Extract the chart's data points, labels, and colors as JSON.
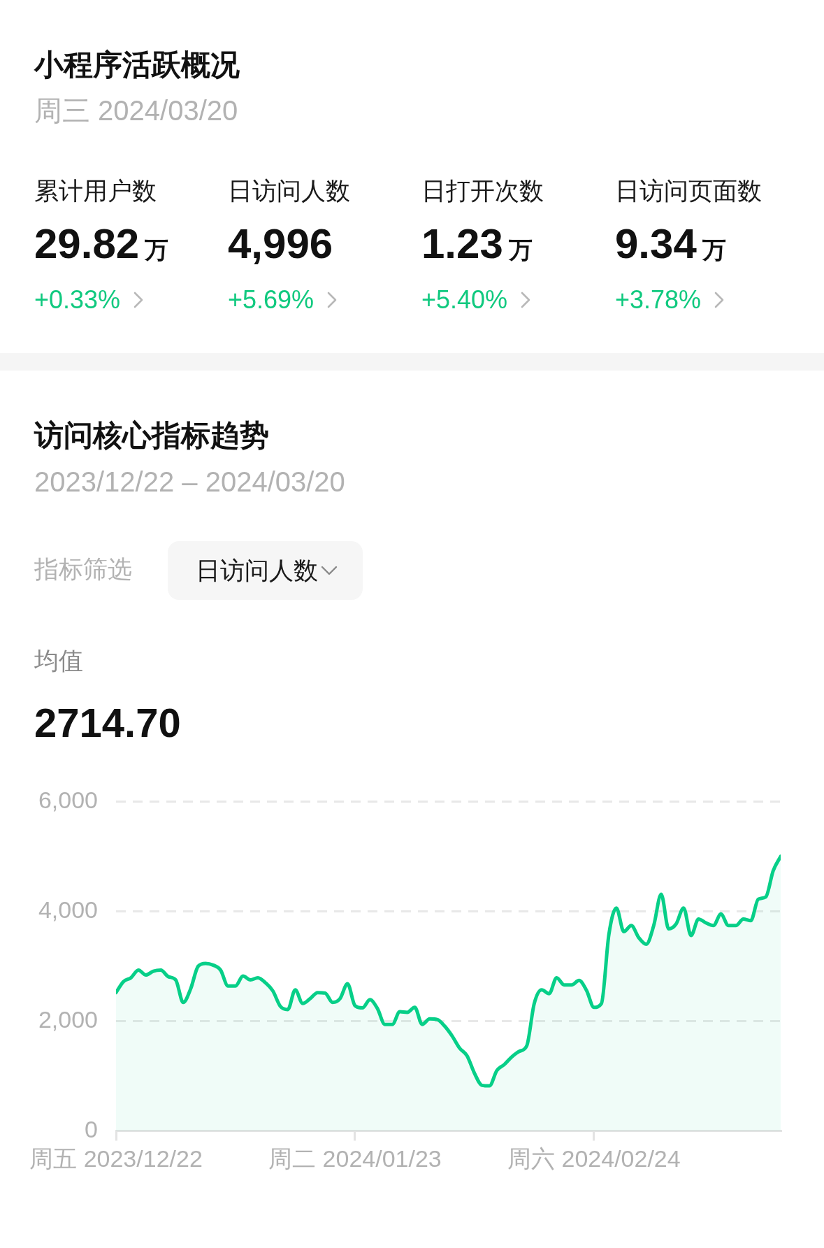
{
  "chart_data": [
    {
      "type": "other",
      "title": "小程序活跃概况",
      "subtitle": "周三 2024/03/20",
      "annotations": [
        "累计用户数",
        "29.82万",
        "+0.33%",
        "日访问人数",
        "4,996",
        "+5.69%",
        "日打开次数",
        "1.23万",
        "+5.40%",
        "日访问页面数",
        "9.34万",
        "+3.78%"
      ]
    },
    {
      "type": "area",
      "title": "访问核心指标趋势",
      "subtitle": "2023/12/22 – 2024/03/20",
      "annotations": [
        "指标筛选",
        "日访问人数",
        "均值",
        "2714.70"
      ],
      "x": [
        "2023-12-22",
        "2023-12-23",
        "2023-12-24",
        "2023-12-25",
        "2023-12-26",
        "2023-12-27",
        "2023-12-28",
        "2023-12-29",
        "2023-12-30",
        "2023-12-31",
        "2024-01-01",
        "2024-01-02",
        "2024-01-03",
        "2024-01-04",
        "2024-01-05",
        "2024-01-06",
        "2024-01-07",
        "2024-01-08",
        "2024-01-09",
        "2024-01-10",
        "2024-01-11",
        "2024-01-12",
        "2024-01-13",
        "2024-01-14",
        "2024-01-15",
        "2024-01-16",
        "2024-01-17",
        "2024-01-18",
        "2024-01-19",
        "2024-01-20",
        "2024-01-21",
        "2024-01-22",
        "2024-01-23",
        "2024-01-24",
        "2024-01-25",
        "2024-01-26",
        "2024-01-27",
        "2024-01-28",
        "2024-01-29",
        "2024-01-30",
        "2024-01-31",
        "2024-02-01",
        "2024-02-02",
        "2024-02-03",
        "2024-02-04",
        "2024-02-05",
        "2024-02-06",
        "2024-02-07",
        "2024-02-08",
        "2024-02-09",
        "2024-02-10",
        "2024-02-11",
        "2024-02-12",
        "2024-02-13",
        "2024-02-14",
        "2024-02-15",
        "2024-02-16",
        "2024-02-17",
        "2024-02-18",
        "2024-02-19",
        "2024-02-20",
        "2024-02-21",
        "2024-02-22",
        "2024-02-23",
        "2024-02-24",
        "2024-02-25",
        "2024-02-26",
        "2024-02-27",
        "2024-02-28",
        "2024-02-29",
        "2024-03-01",
        "2024-03-02",
        "2024-03-03",
        "2024-03-04",
        "2024-03-05",
        "2024-03-06",
        "2024-03-07",
        "2024-03-08",
        "2024-03-09",
        "2024-03-10",
        "2024-03-11",
        "2024-03-12",
        "2024-03-13",
        "2024-03-14",
        "2024-03-15",
        "2024-03-16",
        "2024-03-17",
        "2024-03-18",
        "2024-03-19",
        "2024-03-20"
      ],
      "values": [
        2520,
        2720,
        2790,
        2930,
        2840,
        2910,
        2930,
        2810,
        2750,
        2340,
        2590,
        3000,
        3050,
        3020,
        2930,
        2640,
        2640,
        2820,
        2750,
        2790,
        2700,
        2550,
        2270,
        2210,
        2570,
        2320,
        2410,
        2520,
        2510,
        2340,
        2410,
        2680,
        2280,
        2240,
        2390,
        2230,
        1940,
        1940,
        2170,
        2160,
        2250,
        1940,
        2040,
        2030,
        1910,
        1730,
        1510,
        1370,
        1050,
        830,
        820,
        1100,
        1210,
        1350,
        1450,
        1550,
        2320,
        2570,
        2500,
        2790,
        2660,
        2660,
        2740,
        2560,
        2250,
        2320,
        3580,
        4060,
        3630,
        3740,
        3520,
        3400,
        3740,
        4310,
        3680,
        3770,
        4060,
        3560,
        3860,
        3790,
        3740,
        3950,
        3740,
        3740,
        3860,
        3830,
        4220,
        4260,
        4740,
        5000
      ],
      "color": "#07cf88",
      "xlim": [
        "2023-12-22",
        "2024-03-20"
      ],
      "xticks": [
        {
          "value": "2023-12-22",
          "label": "周五 2023/12/22"
        },
        {
          "value": "2024-01-23",
          "label": "周二 2024/01/23"
        },
        {
          "value": "2024-02-24",
          "label": "周六 2024/02/24"
        }
      ],
      "ylim": [
        0,
        6000
      ],
      "yticks": [
        0,
        {
          "value": 2000,
          "label": "2,000"
        },
        {
          "value": 4000,
          "label": "4,000"
        },
        {
          "value": 6000,
          "label": "6,000"
        }
      ],
      "grid": "y"
    }
  ]
}
